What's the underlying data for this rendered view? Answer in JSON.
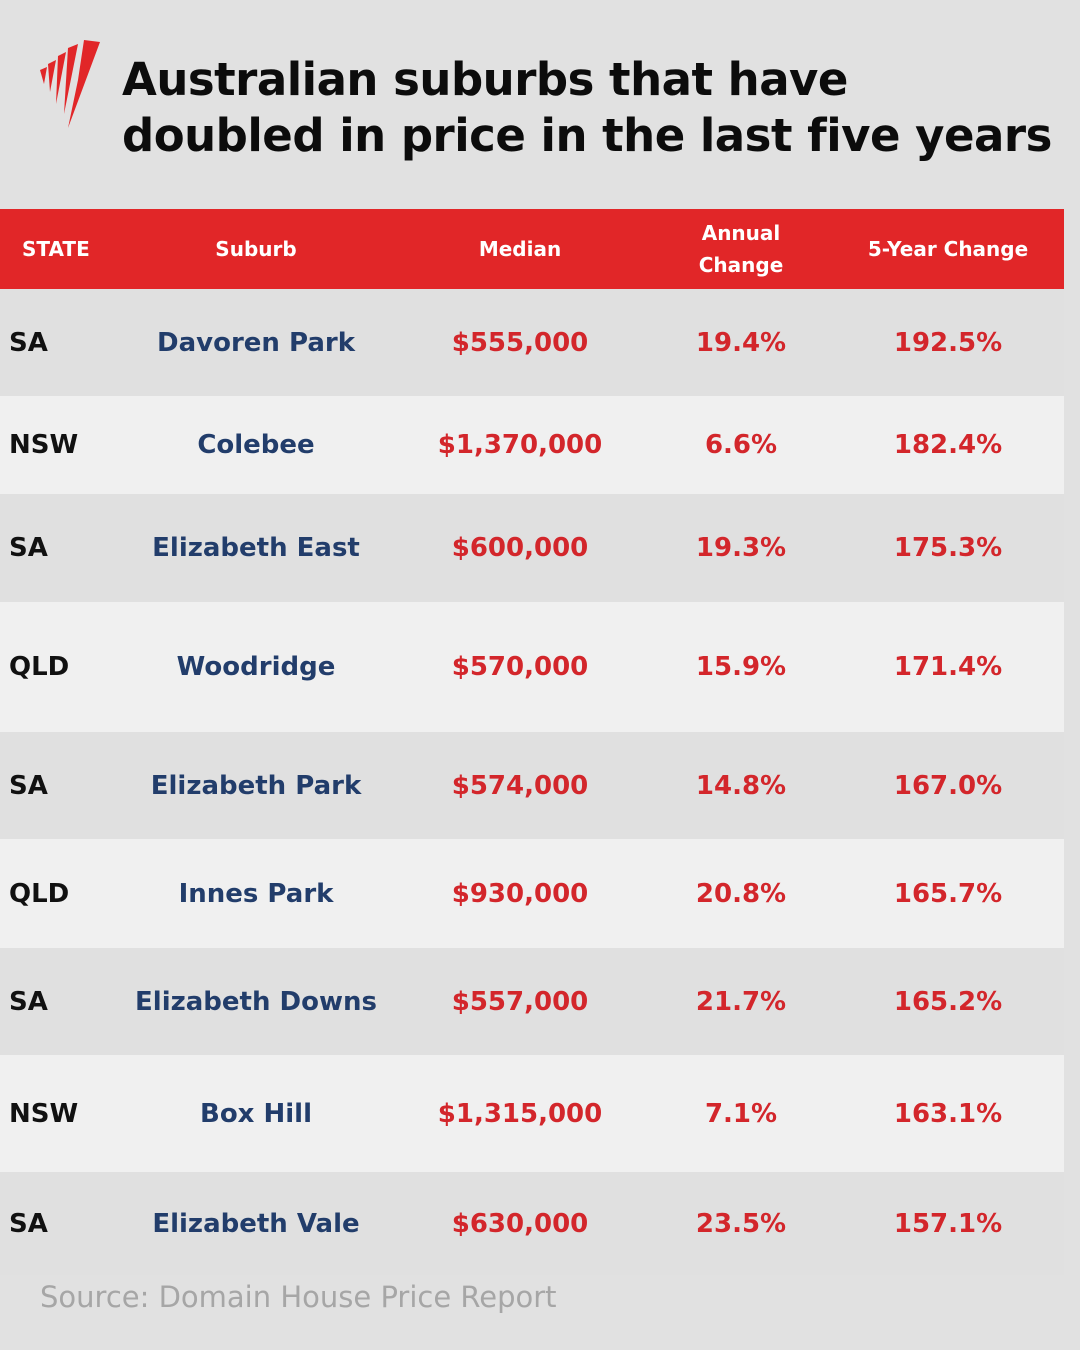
{
  "brand": {
    "logo": "SBS",
    "accent": "#e12628",
    "suburb_color": "#223d6b",
    "value_color": "#d3262b"
  },
  "title_lines": [
    "Australian suburbs that have",
    "doubled in price in the last five years"
  ],
  "chart_data": {
    "type": "table",
    "columns": [
      "STATE",
      "Suburb",
      "Median",
      "Annual Change",
      "5-Year Change"
    ],
    "rows": [
      [
        "SA",
        "Davoren Park",
        "$555,000",
        "19.4%",
        "192.5%"
      ],
      [
        "NSW",
        "Colebee",
        "$1,370,000",
        "6.6%",
        "182.4%"
      ],
      [
        "SA",
        "Elizabeth East",
        "$600,000",
        "19.3%",
        "175.3%"
      ],
      [
        "QLD",
        "Woodridge",
        "$570,000",
        "15.9%",
        "171.4%"
      ],
      [
        "SA",
        "Elizabeth Park",
        "$574,000",
        "14.8%",
        "167.0%"
      ],
      [
        "QLD",
        "Innes Park",
        "$930,000",
        "20.8%",
        "165.7%"
      ],
      [
        "SA",
        "Elizabeth Downs",
        "$557,000",
        "21.7%",
        "165.2%"
      ],
      [
        "NSW",
        "Box Hill",
        "$1,315,000",
        "7.1%",
        "163.1%"
      ],
      [
        "SA",
        "Elizabeth Vale",
        "$630,000",
        "23.5%",
        "157.1%"
      ]
    ]
  },
  "header_annual": [
    "Annual",
    "Change"
  ],
  "source": "Source: Domain House Price Report"
}
